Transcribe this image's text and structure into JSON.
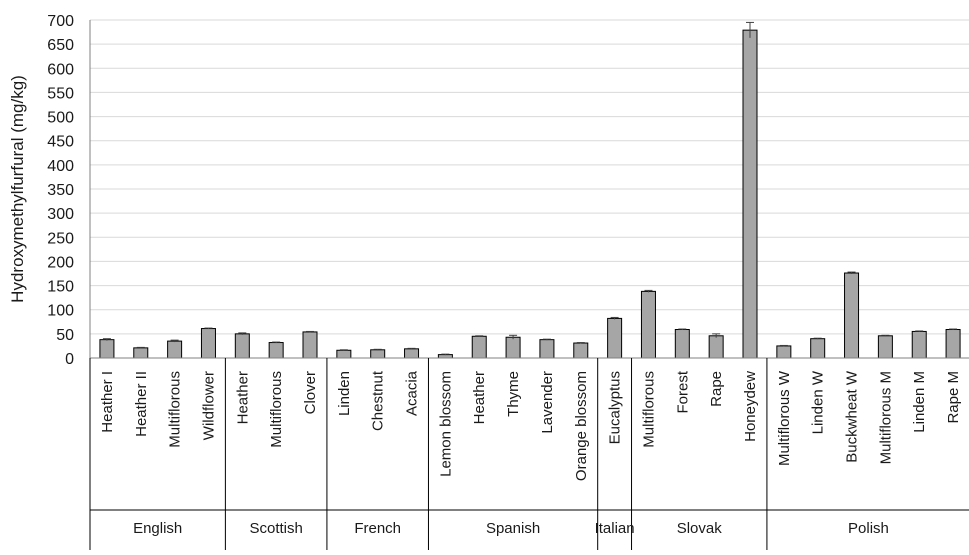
{
  "chart_data": {
    "type": "bar",
    "ylabel": "Hydroxymethylfurfural (mg/kg)",
    "xlabel": "",
    "ylim": [
      0,
      700
    ],
    "ytick_step": 50,
    "grid": "horizontal",
    "legend": "none",
    "bar_color": "#a6a6a6",
    "bar_edge_color": "#000000",
    "categories": [
      "Heather I",
      "Heather II",
      "Multiflorous",
      "Wildflower",
      "Heather",
      "Multiflorous",
      "Clover",
      "Linden",
      "Chestnut",
      "Acacia",
      "Lemon blossom",
      "Heather",
      "Thyme",
      "Lavender",
      "Orange blossom",
      "Eucalyptus",
      "Multiflorous",
      "Forest",
      "Rape",
      "Honeydew",
      "Multiflorous W",
      "Linden W",
      "Buckwheat W",
      "Multiflorous M",
      "Linden M",
      "Rape M"
    ],
    "values": [
      38,
      21,
      35,
      61,
      50,
      32,
      54,
      16,
      17,
      19,
      7,
      45,
      43,
      38,
      31,
      82,
      138,
      59,
      46,
      679,
      25,
      40,
      176,
      46,
      55,
      59
    ],
    "errors": [
      2,
      1,
      2,
      1,
      2,
      1,
      1,
      1,
      1,
      1,
      1,
      1,
      4,
      1,
      1,
      2,
      2,
      1,
      4,
      16,
      1,
      1,
      2,
      1,
      1,
      1
    ],
    "groups": [
      {
        "name": "English",
        "start": 0,
        "count": 4
      },
      {
        "name": "Scottish",
        "start": 4,
        "count": 3
      },
      {
        "name": "French",
        "start": 7,
        "count": 3
      },
      {
        "name": "Spanish",
        "start": 10,
        "count": 5
      },
      {
        "name": "Italian",
        "start": 15,
        "count": 1
      },
      {
        "name": "Slovak",
        "start": 16,
        "count": 4
      },
      {
        "name": "Polish",
        "start": 20,
        "count": 6
      }
    ]
  }
}
